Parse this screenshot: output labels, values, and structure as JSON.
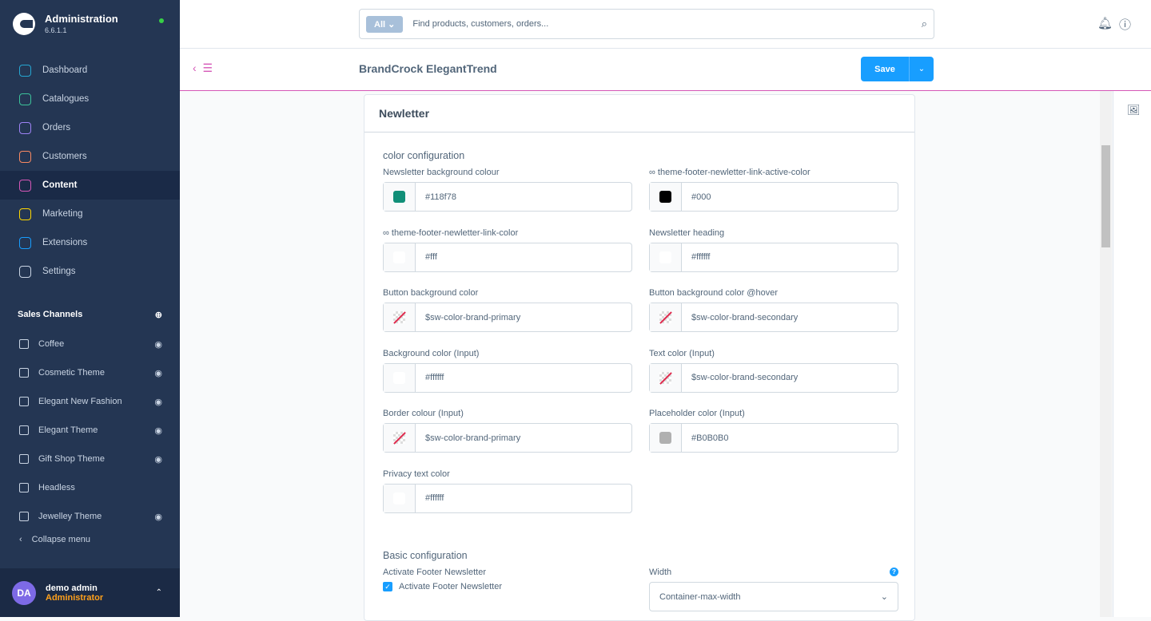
{
  "app": {
    "title": "Administration",
    "version": "6.6.1.1"
  },
  "nav": [
    {
      "label": "Dashboard",
      "color": "#26a6d1"
    },
    {
      "label": "Catalogues",
      "color": "#3cc29a"
    },
    {
      "label": "Orders",
      "color": "#9e83f5"
    },
    {
      "label": "Customers",
      "color": "#f88962"
    },
    {
      "label": "Content",
      "color": "#d557b7",
      "active": true
    },
    {
      "label": "Marketing",
      "color": "#ffd700"
    },
    {
      "label": "Extensions",
      "color": "#189eff"
    },
    {
      "label": "Settings",
      "color": "#c9d4e3"
    }
  ],
  "sales_channels": {
    "title": "Sales Channels",
    "items": [
      "Coffee",
      "Cosmetic Theme",
      "Elegant New Fashion",
      "Elegant Theme",
      "Gift Shop Theme",
      "Headless",
      "Jewelley Theme"
    ]
  },
  "collapse": "Collapse menu",
  "user": {
    "initials": "DA",
    "name": "demo admin",
    "role": "Administrator"
  },
  "search": {
    "scope": "All",
    "placeholder": "Find products, customers, orders..."
  },
  "page": {
    "title": "BrandCrock ElegantTrend",
    "save": "Save"
  },
  "card": {
    "title": "Newletter",
    "color_section": "color configuration",
    "fields": [
      {
        "label": "Newsletter background colour",
        "value": "#118f78",
        "swatch": "#118f78"
      },
      {
        "label": "theme-footer-newletter-link-active-color",
        "value": "#000",
        "swatch": "#000000",
        "linked": true
      },
      {
        "label": "theme-footer-newletter-link-color",
        "value": "#fff",
        "swatch": "#ffffff",
        "linked": true
      },
      {
        "label": "Newsletter heading",
        "value": "#ffffff",
        "swatch": "#ffffff"
      },
      {
        "label": "Button background color",
        "value": "$sw-color-brand-primary",
        "swatch": "none"
      },
      {
        "label": "Button background color @hover",
        "value": "$sw-color-brand-secondary",
        "swatch": "none"
      },
      {
        "label": "Background color (Input)",
        "value": "#ffffff",
        "swatch": "#ffffff"
      },
      {
        "label": "Text color (Input)",
        "value": "$sw-color-brand-secondary",
        "swatch": "none"
      },
      {
        "label": "Border colour (Input)",
        "value": "$sw-color-brand-primary",
        "swatch": "none"
      },
      {
        "label": "Placeholder color (Input)",
        "value": "#B0B0B0",
        "swatch": "#b0b0b0"
      },
      {
        "label": "Privacy text color",
        "value": "#ffffff",
        "swatch": "#ffffff"
      }
    ],
    "basic_section": "Basic configuration",
    "activate": {
      "label": "Activate Footer Newsletter",
      "checkbox": "Activate Footer Newsletter",
      "checked": true
    },
    "width": {
      "label": "Width",
      "value": "Container-max-width"
    }
  }
}
